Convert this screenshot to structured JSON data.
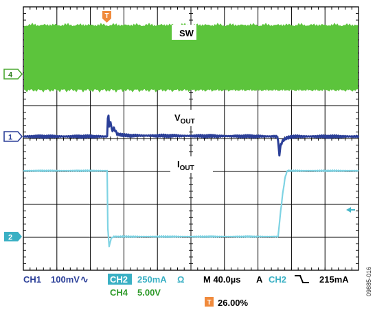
{
  "chart_data": {
    "type": "line",
    "title": "",
    "xlabel": "",
    "ylabel": "",
    "grid": true,
    "x_divisions": 10,
    "y_divisions": 8,
    "time_per_div": "40.0µs",
    "series": [
      {
        "name": "SW",
        "channel": "4",
        "scale": "5.00V",
        "color": "#5cc43c",
        "x": [
          0,
          10
        ],
        "y": [
          0.5,
          0.5
        ],
        "band_div": [
          0.45,
          1.45
        ]
      },
      {
        "name": "VOUT",
        "channel": "1",
        "scale": "100mV",
        "color": "#2b3f98",
        "x": [
          0,
          2.4,
          2.5,
          2.53,
          2.56,
          2.6,
          2.65,
          2.7,
          2.8,
          3.0,
          7.59,
          7.61,
          7.64,
          7.68,
          7.75,
          7.85,
          8.0,
          10
        ],
        "y": [
          0,
          0,
          0,
          0.82,
          0.3,
          0.45,
          0.15,
          0.25,
          0.08,
          0.03,
          0,
          -0.3,
          -0.55,
          -0.25,
          -0.12,
          -0.05,
          0,
          0
        ]
      },
      {
        "name": "IOUT",
        "channel": "2",
        "scale": "250mA",
        "color": "#7ed3e3",
        "x": [
          0,
          2.5,
          2.52,
          2.56,
          2.62,
          2.7,
          7.6,
          7.62,
          7.68,
          7.75,
          7.82,
          7.88,
          10
        ],
        "y": [
          2.0,
          2.0,
          0.25,
          -0.3,
          -0.05,
          0,
          0,
          0.2,
          0.8,
          1.4,
          1.85,
          2.0,
          2.0
        ]
      }
    ],
    "trace_labels": [
      {
        "main": "SW",
        "sub": ""
      },
      {
        "main": "V",
        "sub": "OUT"
      },
      {
        "main": "I",
        "sub": "OUT"
      }
    ],
    "channel_markers": [
      "4",
      "1",
      "2"
    ],
    "trigger": {
      "marker": "T",
      "channel": "CH2",
      "slope": "falling",
      "level": "215mA",
      "position": "26.00%"
    }
  },
  "readout": {
    "ch1_label": "CH1",
    "ch1_scale": "100mV",
    "ch1_coupling": "∿",
    "ch2_label": "CH2",
    "ch2_scale": "250mA",
    "ch2_unit": "Ω",
    "ch4_label": "CH4",
    "ch4_scale": "5.00V",
    "timebase": "M 40.0µs",
    "trigger_mode": "A",
    "trigger_channel": "CH2",
    "trigger_slope_symbol": "⌐",
    "trigger_level": "215mA",
    "trigger_marker": "T",
    "trigger_position": "26.00%"
  },
  "figure_id": "09885-016"
}
